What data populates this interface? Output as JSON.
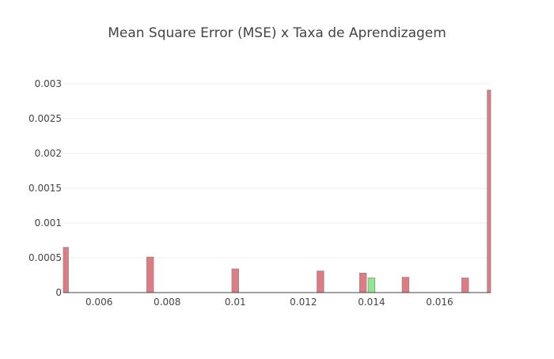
{
  "chart_data": {
    "type": "bar",
    "title": "Mean Square Error (MSE) x Taxa de Aprendizagem",
    "xlabel": "",
    "ylabel": "",
    "xlim": [
      0.00495,
      0.0175
    ],
    "ylim": [
      0,
      0.003
    ],
    "grid": true,
    "legend": "none",
    "x_ticks": [
      {
        "value": 0.006,
        "label": "0.006"
      },
      {
        "value": 0.008,
        "label": "0.008"
      },
      {
        "value": 0.01,
        "label": "0.01"
      },
      {
        "value": 0.012,
        "label": "0.012"
      },
      {
        "value": 0.014,
        "label": "0.014"
      },
      {
        "value": 0.016,
        "label": "0.016"
      }
    ],
    "y_ticks": [
      {
        "value": 0,
        "label": "0"
      },
      {
        "value": 0.0005,
        "label": "0.0005"
      },
      {
        "value": 0.001,
        "label": "0.001"
      },
      {
        "value": 0.0015,
        "label": "0.0015"
      },
      {
        "value": 0.002,
        "label": "0.002"
      },
      {
        "value": 0.0025,
        "label": "0.0025"
      },
      {
        "value": 0.003,
        "label": "0.003"
      }
    ],
    "bars": [
      {
        "x": 0.005,
        "value": 0.00065,
        "color": "#e07b84"
      },
      {
        "x": 0.0075,
        "value": 0.00051,
        "color": "#e07b84"
      },
      {
        "x": 0.01,
        "value": 0.00034,
        "color": "#e07b84"
      },
      {
        "x": 0.0125,
        "value": 0.00031,
        "color": "#e07b84"
      },
      {
        "x": 0.01375,
        "value": 0.00028,
        "color": "#e07b84"
      },
      {
        "x": 0.014,
        "value": 0.00021,
        "color": "#90e88c"
      },
      {
        "x": 0.015,
        "value": 0.00022,
        "color": "#e07b84"
      },
      {
        "x": 0.01675,
        "value": 0.00021,
        "color": "#e07b84"
      },
      {
        "x": 0.0175,
        "value": 0.00291,
        "color": "#e07b84"
      }
    ],
    "bar_width": 0.0002
  }
}
